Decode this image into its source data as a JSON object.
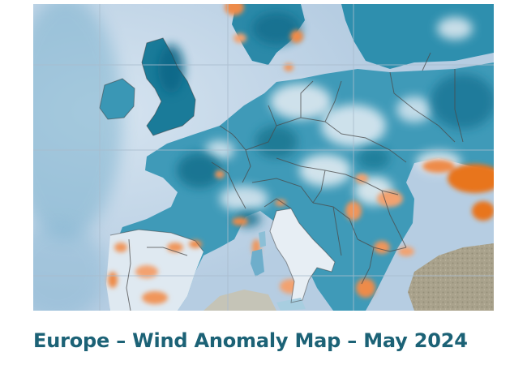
{
  "caption": {
    "title": "Europe – Wind Anomaly Map – May 2024"
  },
  "map": {
    "region": "Europe",
    "kind": "wind anomaly",
    "colors": {
      "sea": "#c5d8ea",
      "positive_anomaly": "#2e8aa6",
      "strong_positive_anomaly": "#146e8e",
      "neutral": "#e8eef4",
      "negative_anomaly": "#f0955a",
      "strong_negative_anomaly": "#e8741e",
      "terrain": "#a8a08a",
      "borders": "#555555",
      "graticule": "#a9bccd",
      "caption": "#1c6276"
    }
  }
}
